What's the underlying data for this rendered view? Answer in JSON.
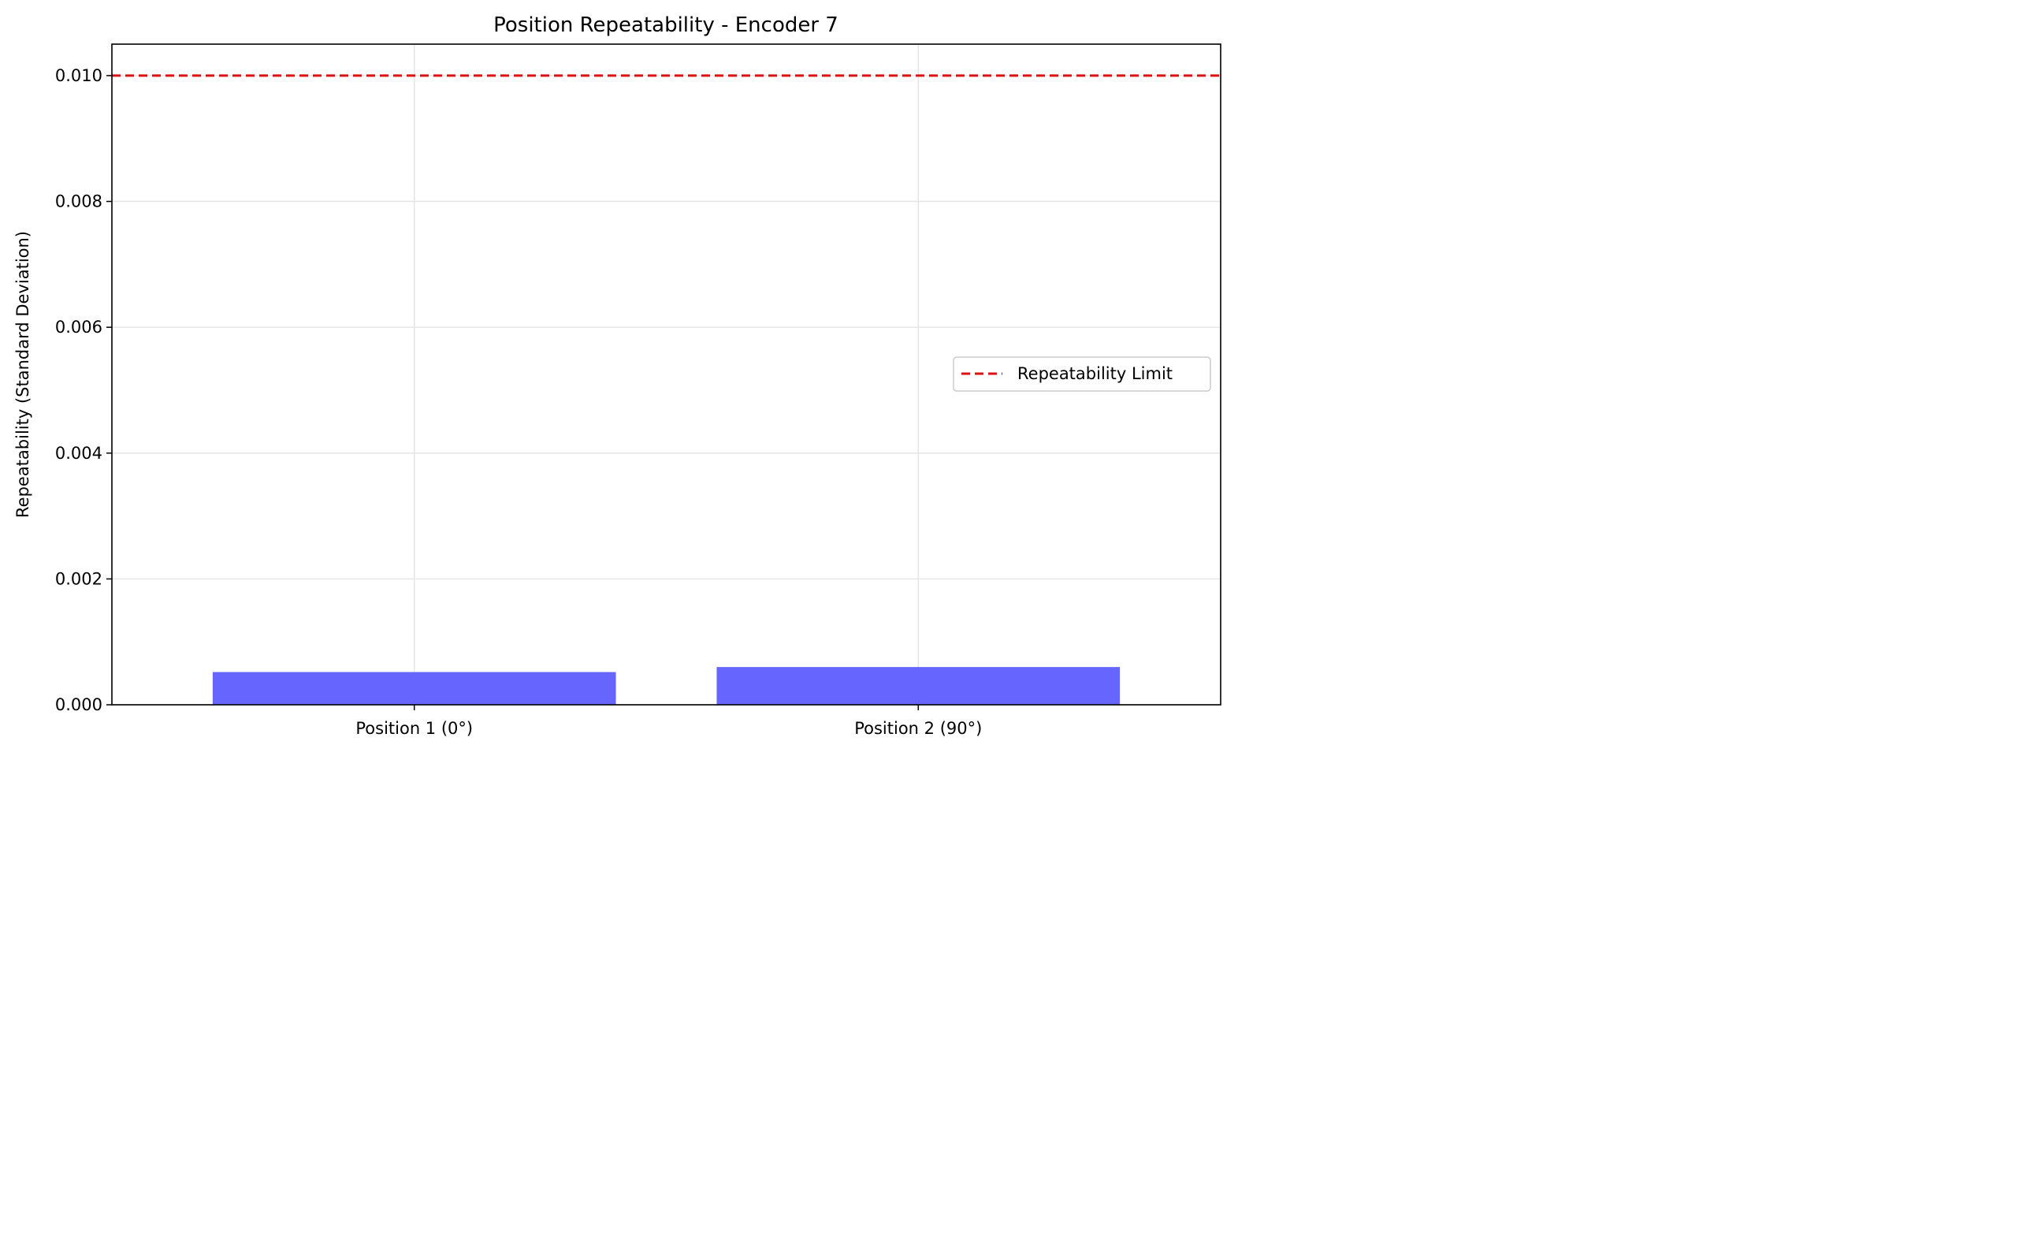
{
  "chart_data": {
    "type": "bar",
    "title": "Position Repeatability - Encoder 7",
    "xlabel": "",
    "ylabel": "Repeatability (Standard Deviation)",
    "categories": [
      "Position 1 (0°)",
      "Position 2 (90°)"
    ],
    "values": [
      0.00052,
      0.0006
    ],
    "ylim": [
      0,
      0.0105
    ],
    "yticks": [
      "0.000",
      "0.002",
      "0.004",
      "0.006",
      "0.008",
      "0.010"
    ],
    "ytick_values": [
      0,
      0.002,
      0.004,
      0.006,
      0.008,
      0.01
    ],
    "bar_color": "#6666ff",
    "limit_line": {
      "value": 0.01,
      "label": "Repeatability Limit",
      "color": "#dd1111",
      "style": "dashed"
    },
    "legend": {
      "placement": "center-right",
      "entries": [
        "Repeatability Limit"
      ]
    },
    "grid": true
  }
}
